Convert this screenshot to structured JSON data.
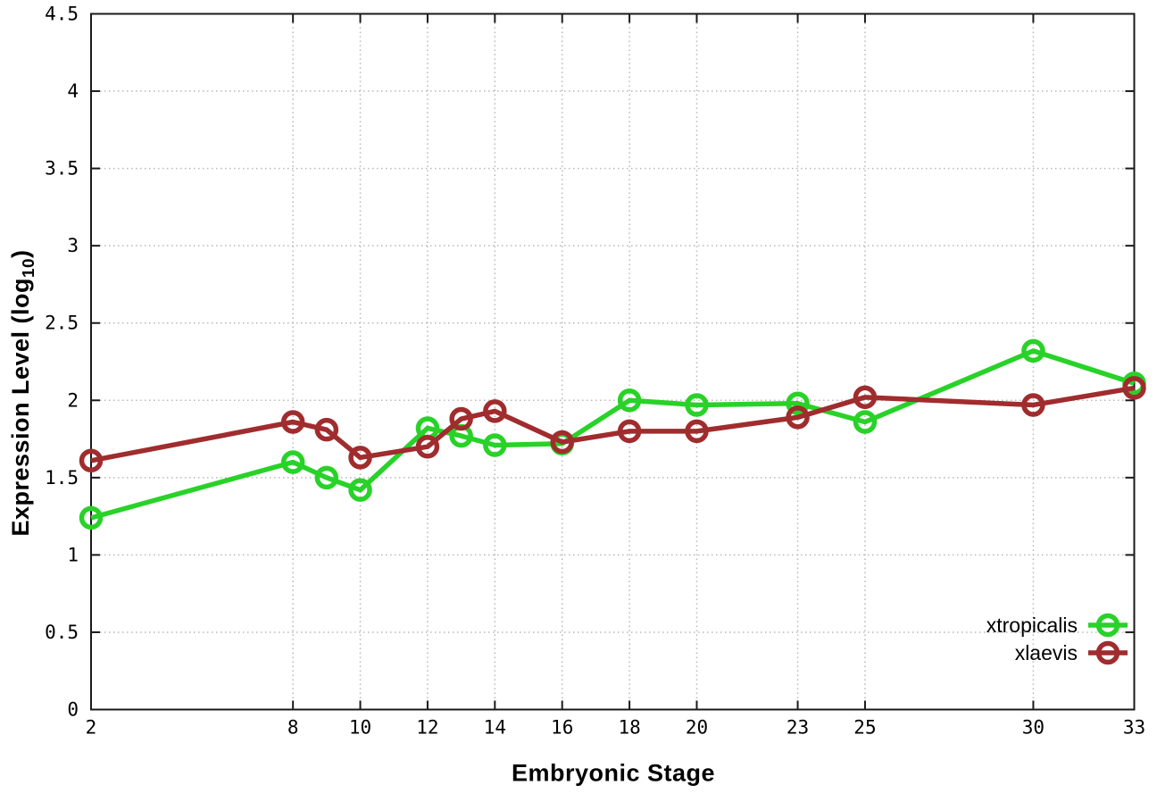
{
  "chart_data": {
    "type": "line",
    "title": "",
    "xlabel": "Embryonic Stage",
    "ylabel": "Expression Level (log10)",
    "ylabel_parts": {
      "prefix": "Expression Level (log",
      "sub": "10",
      "suffix": ")"
    },
    "xlim": [
      2,
      33
    ],
    "ylim": [
      0,
      4.5
    ],
    "x_ticks": [
      2,
      8,
      10,
      12,
      14,
      16,
      18,
      20,
      23,
      25,
      30,
      33
    ],
    "y_ticks": [
      0,
      0.5,
      1,
      1.5,
      2,
      2.5,
      3,
      3.5,
      4,
      4.5
    ],
    "grid": true,
    "legend_position": "bottom-right",
    "x": [
      2,
      8,
      9,
      10,
      12,
      13,
      14,
      16,
      18,
      20,
      23,
      25,
      30,
      33
    ],
    "series": [
      {
        "name": "xtropicalis",
        "color": "#28d228",
        "values": [
          1.24,
          1.6,
          1.5,
          1.42,
          1.82,
          1.77,
          1.71,
          1.72,
          2.0,
          1.97,
          1.98,
          1.86,
          2.32,
          2.11
        ]
      },
      {
        "name": "xlaevis",
        "color": "#a02c2e",
        "values": [
          1.61,
          1.86,
          1.81,
          1.63,
          1.7,
          1.88,
          1.93,
          1.73,
          1.8,
          1.8,
          1.89,
          2.02,
          1.97,
          2.08
        ]
      }
    ],
    "colors": {
      "grid": "#b8b8b8",
      "axis": "#1a1a1a",
      "text": "#000000"
    }
  }
}
